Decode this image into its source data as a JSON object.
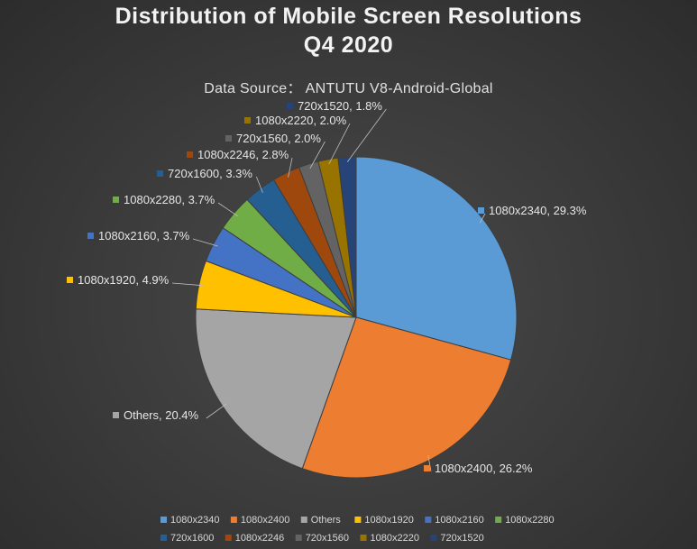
{
  "chart_data": {
    "type": "pie",
    "title_line1": "Distribution of Mobile Screen Resolutions",
    "title_line2": "Q4 2020",
    "subtitle": "Data Source： ANTUTU V8-Android-Global",
    "legend_position": "bottom",
    "slices": [
      {
        "label": "1080x2340",
        "value": 29.3,
        "display": "1080x2340, 29.3%",
        "color": "#5b9bd5"
      },
      {
        "label": "1080x2400",
        "value": 26.2,
        "display": "1080x2400, 26.2%",
        "color": "#ed7d31"
      },
      {
        "label": "Others",
        "value": 20.4,
        "display": "Others, 20.4%",
        "color": "#a5a5a5"
      },
      {
        "label": "1080x1920",
        "value": 4.9,
        "display": "1080x1920, 4.9%",
        "color": "#ffc000"
      },
      {
        "label": "1080x2160",
        "value": 3.7,
        "display": "1080x2160, 3.7%",
        "color": "#4472c4"
      },
      {
        "label": "1080x2280",
        "value": 3.7,
        "display": "1080x2280, 3.7%",
        "color": "#70ad47"
      },
      {
        "label": "720x1600",
        "value": 3.3,
        "display": "720x1600, 3.3%",
        "color": "#255e91"
      },
      {
        "label": "1080x2246",
        "value": 2.8,
        "display": "1080x2246, 2.8%",
        "color": "#9e480e"
      },
      {
        "label": "720x1560",
        "value": 2.0,
        "display": "720x1560, 2.0%",
        "color": "#636363"
      },
      {
        "label": "1080x2220",
        "value": 2.0,
        "display": "1080x2220, 2.0%",
        "color": "#997300"
      },
      {
        "label": "720x1520",
        "value": 1.8,
        "display": "720x1520, 1.8%",
        "color": "#264478"
      }
    ]
  }
}
